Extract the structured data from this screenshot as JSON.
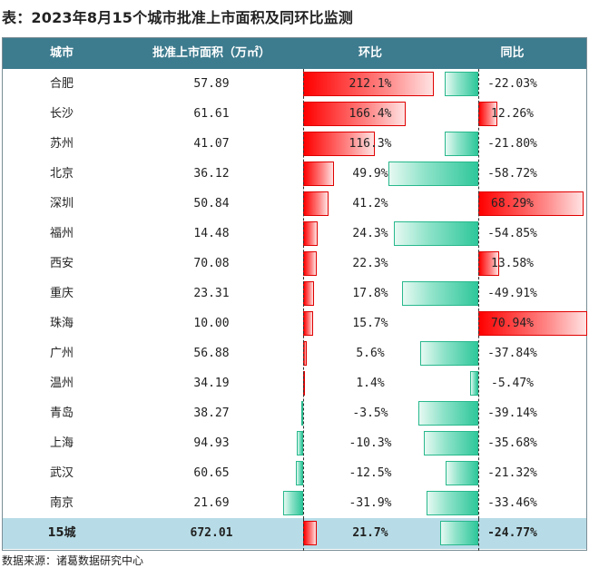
{
  "title": "表：2023年8月15个城市批准上市面积及同环比监测",
  "headers": {
    "city": "城市",
    "area": "批准上市面积（万㎡）",
    "mom": "环比",
    "yoy": "同比"
  },
  "rows": [
    {
      "city": "合肥",
      "area": "57.89",
      "mom": "212.1%",
      "mom_value": 212.1,
      "yoy": "-22.03%",
      "yoy_value": -22.03
    },
    {
      "city": "长沙",
      "area": "61.61",
      "mom": "166.4%",
      "mom_value": 166.4,
      "yoy": "12.26%",
      "yoy_value": 12.26
    },
    {
      "city": "苏州",
      "area": "41.07",
      "mom": "116.3%",
      "mom_value": 116.3,
      "yoy": "-21.80%",
      "yoy_value": -21.8
    },
    {
      "city": "北京",
      "area": "36.12",
      "mom": "49.9%",
      "mom_value": 49.9,
      "yoy": "-58.72%",
      "yoy_value": -58.72
    },
    {
      "city": "深圳",
      "area": "50.84",
      "mom": "41.2%",
      "mom_value": 41.2,
      "yoy": "68.29%",
      "yoy_value": 68.29
    },
    {
      "city": "福州",
      "area": "14.48",
      "mom": "24.3%",
      "mom_value": 24.3,
      "yoy": "-54.85%",
      "yoy_value": -54.85
    },
    {
      "city": "西安",
      "area": "70.08",
      "mom": "22.3%",
      "mom_value": 22.3,
      "yoy": "13.58%",
      "yoy_value": 13.58
    },
    {
      "city": "重庆",
      "area": "23.31",
      "mom": "17.8%",
      "mom_value": 17.8,
      "yoy": "-49.91%",
      "yoy_value": -49.91
    },
    {
      "city": "珠海",
      "area": "10.00",
      "mom": "15.7%",
      "mom_value": 15.7,
      "yoy": "70.94%",
      "yoy_value": 70.94
    },
    {
      "city": "广州",
      "area": "56.88",
      "mom": "5.6%",
      "mom_value": 5.6,
      "yoy": "-37.84%",
      "yoy_value": -37.84
    },
    {
      "city": "温州",
      "area": "34.19",
      "mom": "1.4%",
      "mom_value": 1.4,
      "yoy": "-5.47%",
      "yoy_value": -5.47
    },
    {
      "city": "青岛",
      "area": "38.27",
      "mom": "-3.5%",
      "mom_value": -3.5,
      "yoy": "-39.14%",
      "yoy_value": -39.14
    },
    {
      "city": "上海",
      "area": "94.93",
      "mom": "-10.3%",
      "mom_value": -10.3,
      "yoy": "-35.68%",
      "yoy_value": -35.68
    },
    {
      "city": "武汉",
      "area": "60.65",
      "mom": "-12.5%",
      "mom_value": -12.5,
      "yoy": "-21.32%",
      "yoy_value": -21.32
    },
    {
      "city": "南京",
      "area": "21.69",
      "mom": "-31.9%",
      "mom_value": -31.9,
      "yoy": "-33.46%",
      "yoy_value": -33.46
    }
  ],
  "total": {
    "city": "15城",
    "area": "672.01",
    "mom": "21.7%",
    "mom_value": 21.7,
    "yoy": "-24.77%",
    "yoy_value": -24.77
  },
  "source": "数据来源：诸葛数据研究中心",
  "colors": {
    "header_bg": "#3d7b8e",
    "positive_bar": "#ff0000",
    "negative_bar": "#2fc79b",
    "total_row_bg": "#b7dce7"
  }
}
